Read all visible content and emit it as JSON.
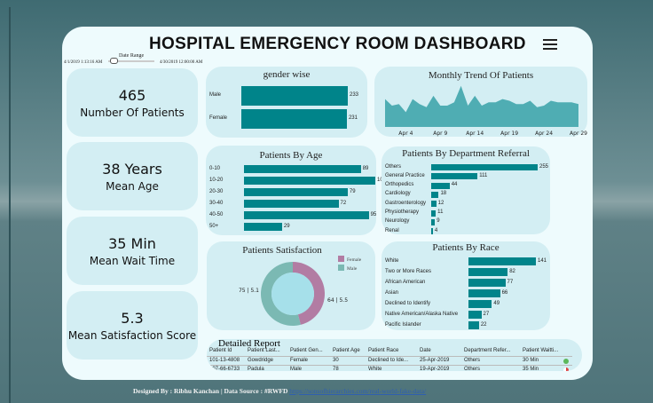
{
  "title": "HOSPITAL EMERGENCY ROOM DASHBOARD",
  "date_range": {
    "label": "Date Range",
    "start": "4/1/2019 1:13:16 AM",
    "end": "4/30/2019 12:00:00 AM"
  },
  "kpis": [
    {
      "value": "465",
      "label": "Number Of Patients"
    },
    {
      "value": "38 Years",
      "label": "Mean Age"
    },
    {
      "value": "35 Min",
      "label": "Mean Wait Time"
    },
    {
      "value": "5.3",
      "label": "Mean Satisfaction Score"
    }
  ],
  "colors": {
    "bar": "#00848a",
    "area": "#4fadb3",
    "female": "#b27ca3",
    "male": "#7bb9b3",
    "panel": "#d3eef3"
  },
  "chart_data": [
    {
      "type": "bar",
      "title": "gender wise",
      "categories": [
        "Male",
        "Female"
      ],
      "values": [
        233,
        231
      ]
    },
    {
      "type": "area",
      "title": "Monthly Trend Of Patients",
      "x": [
        "Apr 1",
        "Apr 2",
        "Apr 3",
        "Apr 4",
        "Apr 5",
        "Apr 6",
        "Apr 7",
        "Apr 8",
        "Apr 9",
        "Apr 10",
        "Apr 11",
        "Apr 12",
        "Apr 13",
        "Apr 14",
        "Apr 15",
        "Apr 16",
        "Apr 17",
        "Apr 18",
        "Apr 19",
        "Apr 20",
        "Apr 21",
        "Apr 22",
        "Apr 23",
        "Apr 24",
        "Apr 25",
        "Apr 26",
        "Apr 27",
        "Apr 28",
        "Apr 29"
      ],
      "values": [
        17,
        13,
        14,
        9,
        17,
        14,
        12,
        19,
        13,
        13,
        15,
        25,
        13,
        19,
        13,
        15,
        15,
        17,
        16,
        14,
        14,
        16,
        12,
        13,
        16,
        15,
        15,
        15,
        14
      ],
      "ticks": [
        "Apr 4",
        "Apr 9",
        "Apr 14",
        "Apr 19",
        "Apr 24",
        "Apr 29"
      ]
    },
    {
      "type": "bar",
      "title": "Patients By Age",
      "categories": [
        "0-10",
        "10-20",
        "20-30",
        "30-40",
        "40-50",
        "50+"
      ],
      "values": [
        89,
        100,
        79,
        72,
        95,
        29
      ]
    },
    {
      "type": "bar",
      "title": "Patients By Department Referral",
      "categories": [
        "Others",
        "General Practice",
        "Orthopedics",
        "Cardiology",
        "Gastroenterology",
        "Physiotherapy",
        "Neurology",
        "Renal"
      ],
      "values": [
        255,
        111,
        44,
        18,
        12,
        11,
        9,
        4
      ]
    },
    {
      "type": "pie",
      "title": "Patients Satisfaction",
      "categories": [
        "Female",
        "Male"
      ],
      "values": [
        64,
        75
      ],
      "labels": [
        "64 | 5.5",
        "75 | 5.1"
      ],
      "legend": "top-right"
    },
    {
      "type": "bar",
      "title": "Patients By Race",
      "categories": [
        "White",
        "Two or More Races",
        "African American",
        "Asian",
        "Declined to Identify",
        "Native American/Alaska Native",
        "Pacific Islander"
      ],
      "values": [
        141,
        82,
        77,
        66,
        49,
        27,
        22
      ]
    }
  ],
  "report": {
    "title": "Detailed Report",
    "columns": [
      "Patient Id",
      "Patient Last...",
      "Patient Gen...",
      "Patient Age",
      "Patient Race",
      "Date",
      "Department Refer...",
      "Patient Waitti..."
    ],
    "rows": [
      [
        "101-13-4808",
        "Gowdridge",
        "Female",
        "30",
        "Declined to Ide...",
        "25-Apr-2019",
        "Others",
        "30 Min"
      ],
      [
        "107-66-6733",
        "Padula",
        "Male",
        "78",
        "White",
        "19-Apr-2019",
        "Others",
        "35 Min"
      ]
    ]
  },
  "footer": {
    "text": "Designed By : Ribhu Kanchan  |  Data Source : #RWFD",
    "link": "https://sonsofhierarchies.com/real-world-fake-data/"
  }
}
